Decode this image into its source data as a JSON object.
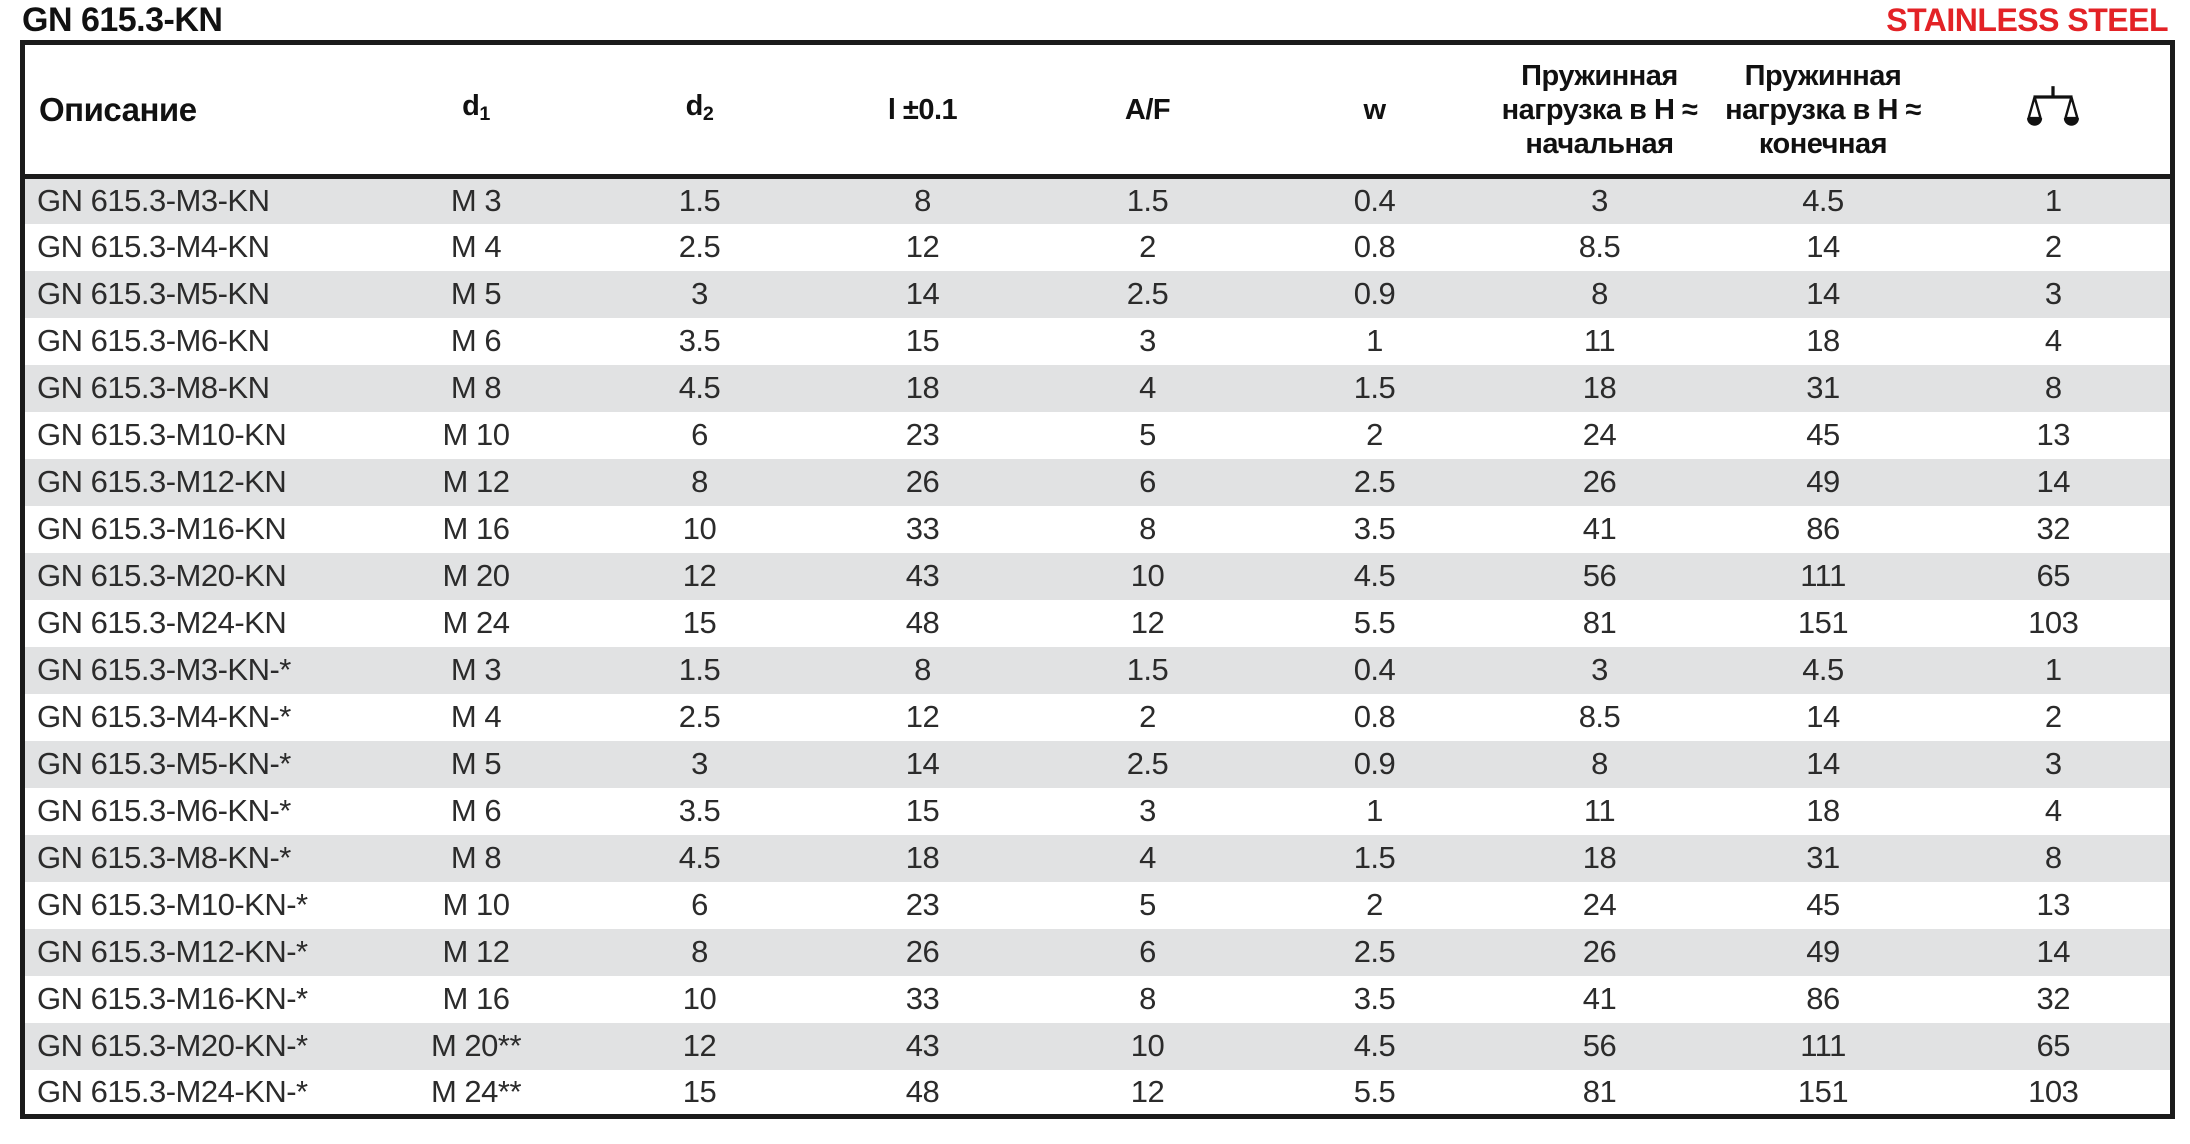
{
  "page": {
    "title": "GN 615.3-KN",
    "badge": "STAINLESS STEEL",
    "badge_color": "#e32226",
    "stripe_color": "#e1e2e3"
  },
  "table": {
    "columns": [
      {
        "key": "description",
        "label": "Описание"
      },
      {
        "key": "d1",
        "base": "d",
        "sub": "1"
      },
      {
        "key": "d2",
        "base": "d",
        "sub": "2"
      },
      {
        "key": "l",
        "label": "l ±0.1"
      },
      {
        "key": "af",
        "label": "A/F"
      },
      {
        "key": "w",
        "label": "w"
      },
      {
        "key": "spring_initial",
        "lines": [
          "Пружинная",
          "нагрузка в H ≈",
          "начальная"
        ]
      },
      {
        "key": "spring_final",
        "lines": [
          "Пружинная",
          "нагрузка в H ≈",
          "конечная"
        ]
      },
      {
        "key": "weight",
        "icon": "balance-scale-icon"
      }
    ],
    "rows": [
      [
        "GN 615.3-M3-KN",
        "M 3",
        "1.5",
        "8",
        "1.5",
        "0.4",
        "3",
        "4.5",
        "1"
      ],
      [
        "GN 615.3-M4-KN",
        "M 4",
        "2.5",
        "12",
        "2",
        "0.8",
        "8.5",
        "14",
        "2"
      ],
      [
        "GN 615.3-M5-KN",
        "M 5",
        "3",
        "14",
        "2.5",
        "0.9",
        "8",
        "14",
        "3"
      ],
      [
        "GN 615.3-M6-KN",
        "M 6",
        "3.5",
        "15",
        "3",
        "1",
        "11",
        "18",
        "4"
      ],
      [
        "GN 615.3-M8-KN",
        "M 8",
        "4.5",
        "18",
        "4",
        "1.5",
        "18",
        "31",
        "8"
      ],
      [
        "GN 615.3-M10-KN",
        "M 10",
        "6",
        "23",
        "5",
        "2",
        "24",
        "45",
        "13"
      ],
      [
        "GN 615.3-M12-KN",
        "M 12",
        "8",
        "26",
        "6",
        "2.5",
        "26",
        "49",
        "14"
      ],
      [
        "GN 615.3-M16-KN",
        "M 16",
        "10",
        "33",
        "8",
        "3.5",
        "41",
        "86",
        "32"
      ],
      [
        "GN 615.3-M20-KN",
        "M 20",
        "12",
        "43",
        "10",
        "4.5",
        "56",
        "111",
        "65"
      ],
      [
        "GN 615.3-M24-KN",
        "M 24",
        "15",
        "48",
        "12",
        "5.5",
        "81",
        "151",
        "103"
      ],
      [
        "GN 615.3-M3-KN-*",
        "M 3",
        "1.5",
        "8",
        "1.5",
        "0.4",
        "3",
        "4.5",
        "1"
      ],
      [
        "GN 615.3-M4-KN-*",
        "M 4",
        "2.5",
        "12",
        "2",
        "0.8",
        "8.5",
        "14",
        "2"
      ],
      [
        "GN 615.3-M5-KN-*",
        "M 5",
        "3",
        "14",
        "2.5",
        "0.9",
        "8",
        "14",
        "3"
      ],
      [
        "GN 615.3-M6-KN-*",
        "M 6",
        "3.5",
        "15",
        "3",
        "1",
        "11",
        "18",
        "4"
      ],
      [
        "GN 615.3-M8-KN-*",
        "M 8",
        "4.5",
        "18",
        "4",
        "1.5",
        "18",
        "31",
        "8"
      ],
      [
        "GN 615.3-M10-KN-*",
        "M 10",
        "6",
        "23",
        "5",
        "2",
        "24",
        "45",
        "13"
      ],
      [
        "GN 615.3-M12-KN-*",
        "M 12",
        "8",
        "26",
        "6",
        "2.5",
        "26",
        "49",
        "14"
      ],
      [
        "GN 615.3-M16-KN-*",
        "M 16",
        "10",
        "33",
        "8",
        "3.5",
        "41",
        "86",
        "32"
      ],
      [
        "GN 615.3-M20-KN-*",
        "M 20**",
        "12",
        "43",
        "10",
        "4.5",
        "56",
        "111",
        "65"
      ],
      [
        "GN 615.3-M24-KN-*",
        "M 24**",
        "15",
        "48",
        "12",
        "5.5",
        "81",
        "151",
        "103"
      ]
    ]
  }
}
